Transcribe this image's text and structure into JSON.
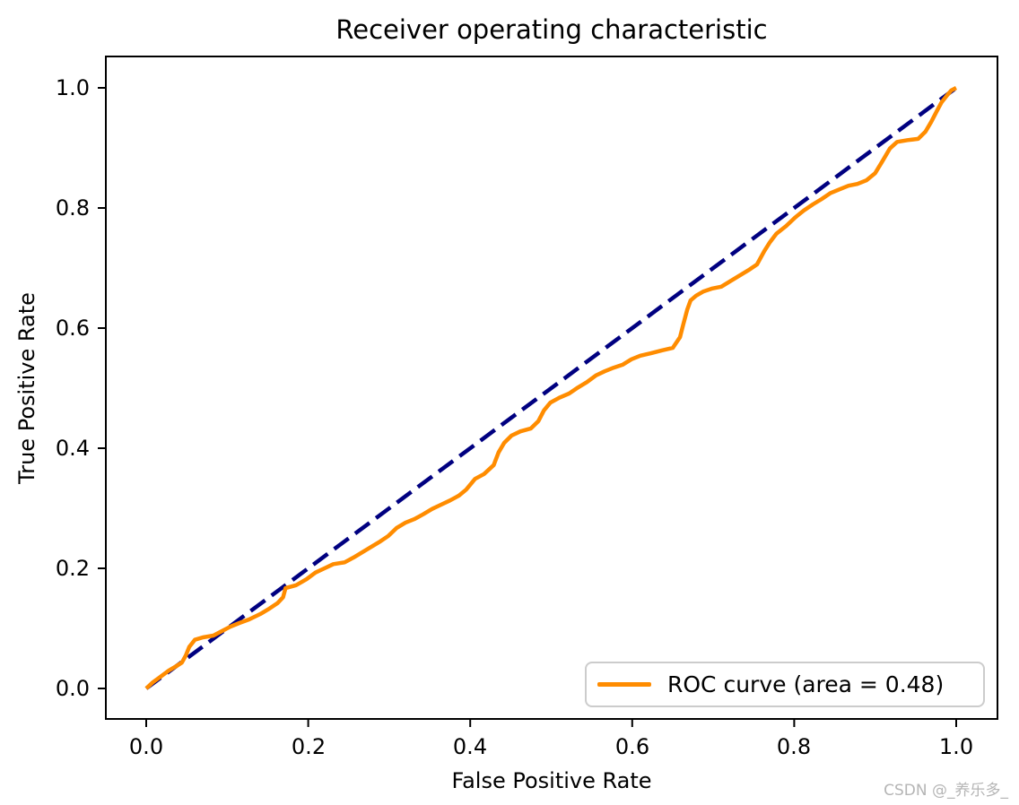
{
  "title": "Receiver operating characteristic",
  "xlabel": "False Positive Rate",
  "ylabel": "True Positive Rate",
  "legend": {
    "label": "ROC curve (area = 0.48)"
  },
  "watermark": "CSDN @_养乐多_",
  "colors": {
    "roc": "#FF8C00",
    "diagonal": "#000080",
    "frame": "#000000",
    "tick": "#000000",
    "legend_border": "#cccccc",
    "watermark": "#b5b5b5"
  },
  "chart_data": {
    "type": "line",
    "title": "Receiver operating characteristic",
    "xlabel": "False Positive Rate",
    "ylabel": "True Positive Rate",
    "xlim": [
      -0.05,
      1.05
    ],
    "ylim": [
      -0.05,
      1.05
    ],
    "xticks": [
      "0.0",
      "0.2",
      "0.4",
      "0.6",
      "0.8",
      "1.0"
    ],
    "yticks": [
      "0.0",
      "0.2",
      "0.4",
      "0.6",
      "0.8",
      "1.0"
    ],
    "grid": false,
    "legend_position": "lower right",
    "auc": 0.48,
    "series": [
      {
        "name": "ROC curve (area = 0.48)",
        "color": "#FF8C00",
        "style": "solid",
        "points": [
          [
            0.0,
            0.0
          ],
          [
            0.008,
            0.01
          ],
          [
            0.017,
            0.019
          ],
          [
            0.028,
            0.03
          ],
          [
            0.037,
            0.037
          ],
          [
            0.044,
            0.043
          ],
          [
            0.049,
            0.055
          ],
          [
            0.053,
            0.069
          ],
          [
            0.06,
            0.081
          ],
          [
            0.07,
            0.085
          ],
          [
            0.083,
            0.088
          ],
          [
            0.094,
            0.096
          ],
          [
            0.104,
            0.103
          ],
          [
            0.115,
            0.109
          ],
          [
            0.127,
            0.115
          ],
          [
            0.141,
            0.124
          ],
          [
            0.152,
            0.133
          ],
          [
            0.162,
            0.142
          ],
          [
            0.169,
            0.152
          ],
          [
            0.172,
            0.167
          ],
          [
            0.185,
            0.172
          ],
          [
            0.198,
            0.182
          ],
          [
            0.209,
            0.193
          ],
          [
            0.22,
            0.2
          ],
          [
            0.231,
            0.207
          ],
          [
            0.245,
            0.21
          ],
          [
            0.256,
            0.218
          ],
          [
            0.267,
            0.227
          ],
          [
            0.278,
            0.236
          ],
          [
            0.289,
            0.245
          ],
          [
            0.299,
            0.254
          ],
          [
            0.309,
            0.267
          ],
          [
            0.32,
            0.276
          ],
          [
            0.331,
            0.282
          ],
          [
            0.342,
            0.29
          ],
          [
            0.353,
            0.299
          ],
          [
            0.364,
            0.306
          ],
          [
            0.375,
            0.313
          ],
          [
            0.386,
            0.321
          ],
          [
            0.395,
            0.331
          ],
          [
            0.406,
            0.349
          ],
          [
            0.417,
            0.357
          ],
          [
            0.429,
            0.372
          ],
          [
            0.435,
            0.393
          ],
          [
            0.442,
            0.409
          ],
          [
            0.451,
            0.421
          ],
          [
            0.462,
            0.428
          ],
          [
            0.475,
            0.433
          ],
          [
            0.484,
            0.445
          ],
          [
            0.491,
            0.463
          ],
          [
            0.499,
            0.476
          ],
          [
            0.51,
            0.484
          ],
          [
            0.522,
            0.491
          ],
          [
            0.533,
            0.501
          ],
          [
            0.544,
            0.51
          ],
          [
            0.555,
            0.521
          ],
          [
            0.566,
            0.528
          ],
          [
            0.577,
            0.534
          ],
          [
            0.588,
            0.539
          ],
          [
            0.599,
            0.548
          ],
          [
            0.61,
            0.554
          ],
          [
            0.623,
            0.558
          ],
          [
            0.637,
            0.563
          ],
          [
            0.65,
            0.567
          ],
          [
            0.659,
            0.585
          ],
          [
            0.663,
            0.606
          ],
          [
            0.668,
            0.631
          ],
          [
            0.672,
            0.646
          ],
          [
            0.679,
            0.654
          ],
          [
            0.688,
            0.661
          ],
          [
            0.699,
            0.666
          ],
          [
            0.71,
            0.669
          ],
          [
            0.721,
            0.678
          ],
          [
            0.732,
            0.687
          ],
          [
            0.743,
            0.696
          ],
          [
            0.754,
            0.706
          ],
          [
            0.763,
            0.728
          ],
          [
            0.77,
            0.743
          ],
          [
            0.778,
            0.757
          ],
          [
            0.79,
            0.77
          ],
          [
            0.801,
            0.784
          ],
          [
            0.812,
            0.796
          ],
          [
            0.823,
            0.806
          ],
          [
            0.834,
            0.815
          ],
          [
            0.845,
            0.825
          ],
          [
            0.856,
            0.831
          ],
          [
            0.867,
            0.837
          ],
          [
            0.878,
            0.84
          ],
          [
            0.889,
            0.846
          ],
          [
            0.9,
            0.858
          ],
          [
            0.909,
            0.878
          ],
          [
            0.918,
            0.899
          ],
          [
            0.927,
            0.91
          ],
          [
            0.94,
            0.913
          ],
          [
            0.953,
            0.915
          ],
          [
            0.962,
            0.927
          ],
          [
            0.969,
            0.943
          ],
          [
            0.976,
            0.961
          ],
          [
            0.982,
            0.976
          ],
          [
            0.989,
            0.988
          ],
          [
            0.994,
            0.996
          ],
          [
            1.0,
            1.0
          ]
        ]
      },
      {
        "name": "chance-diagonal",
        "color": "#000080",
        "style": "dashed",
        "points": [
          [
            0.0,
            0.0
          ],
          [
            1.0,
            1.0
          ]
        ]
      }
    ]
  }
}
